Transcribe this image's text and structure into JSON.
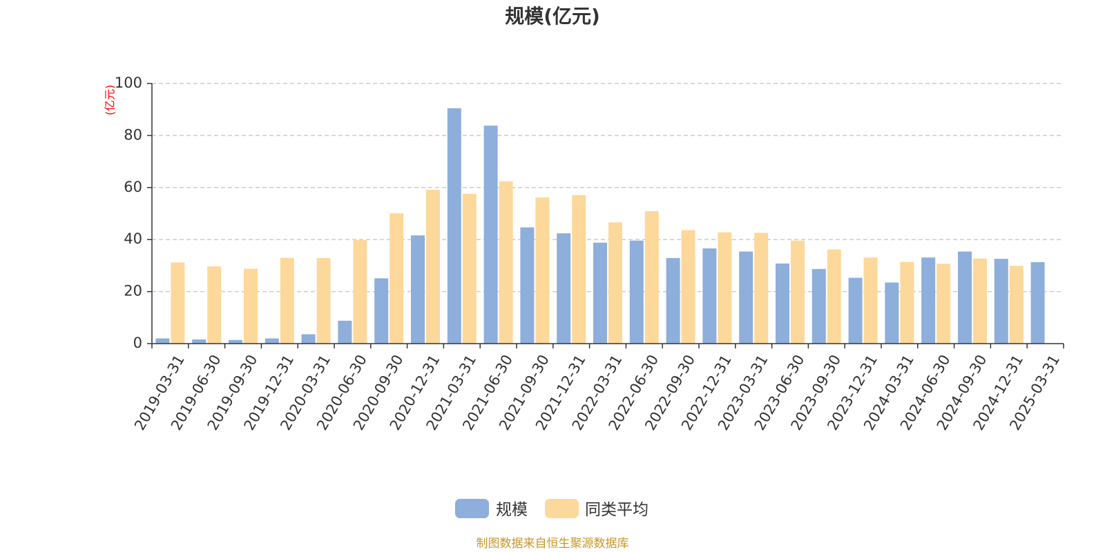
{
  "chart_data": {
    "type": "bar",
    "title": "规模(亿元)",
    "ylabel": "(亿元)",
    "ylim": [
      0,
      100
    ],
    "yticks": [
      0,
      20,
      40,
      60,
      80,
      100
    ],
    "grid": true,
    "legend_position": "bottom",
    "categories": [
      "2019-03-31",
      "2019-06-30",
      "2019-09-30",
      "2019-12-31",
      "2020-03-31",
      "2020-06-30",
      "2020-09-30",
      "2020-12-31",
      "2021-03-31",
      "2021-06-30",
      "2021-09-30",
      "2021-12-31",
      "2022-03-31",
      "2022-06-30",
      "2022-09-30",
      "2022-12-31",
      "2023-03-31",
      "2023-06-30",
      "2023-09-30",
      "2023-12-31",
      "2024-03-31",
      "2024-06-30",
      "2024-09-30",
      "2024-12-31",
      "2025-03-31"
    ],
    "series": [
      {
        "name": "规模",
        "color": "#8eaedb",
        "values": [
          2.0,
          1.6,
          1.4,
          2.0,
          3.6,
          8.8,
          25.1,
          41.6,
          90.5,
          83.8,
          44.7,
          42.4,
          38.8,
          39.6,
          32.9,
          36.6,
          35.4,
          30.8,
          28.7,
          25.3,
          23.5,
          33.1,
          35.4,
          32.6,
          31.3
        ]
      },
      {
        "name": "同类平均",
        "color": "#fdd89b",
        "values": [
          31.2,
          29.7,
          28.8,
          33.0,
          32.9,
          39.8,
          50.1,
          59.1,
          57.6,
          62.4,
          56.2,
          57.1,
          46.6,
          50.9,
          43.6,
          42.8,
          42.6,
          39.6,
          36.2,
          33.1,
          31.4,
          30.7,
          32.7,
          29.9,
          null
        ]
      }
    ]
  },
  "source_note": "制图数据来自恒生聚源数据库"
}
